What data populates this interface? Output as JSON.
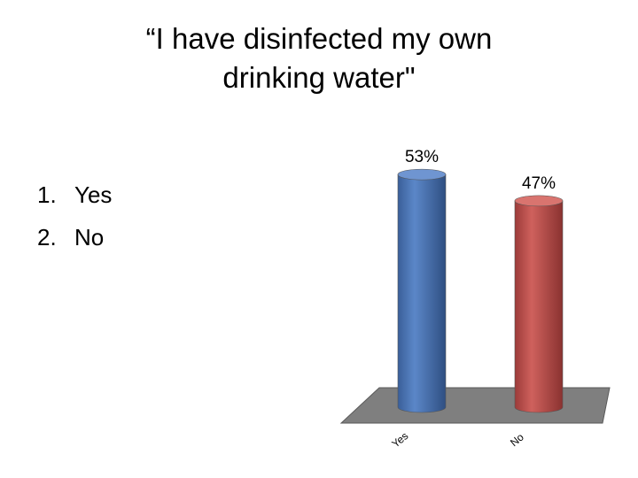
{
  "slide": {
    "title_line1": "“I have disinfected my own",
    "title_line2": "drinking water\"",
    "options": [
      {
        "number": "1.",
        "label": "Yes"
      },
      {
        "number": "2.",
        "label": "No"
      }
    ]
  },
  "chart_data": {
    "type": "bar",
    "style": "3d-cylinder",
    "title": "",
    "categories": [
      "Yes",
      "No"
    ],
    "values": [
      53,
      47
    ],
    "value_labels": [
      "53%",
      "47%"
    ],
    "unit": "%",
    "colors": [
      "#4a73b6",
      "#c0504d"
    ],
    "floor_color": "#7f7f7f",
    "grid": false,
    "legend": "none"
  }
}
